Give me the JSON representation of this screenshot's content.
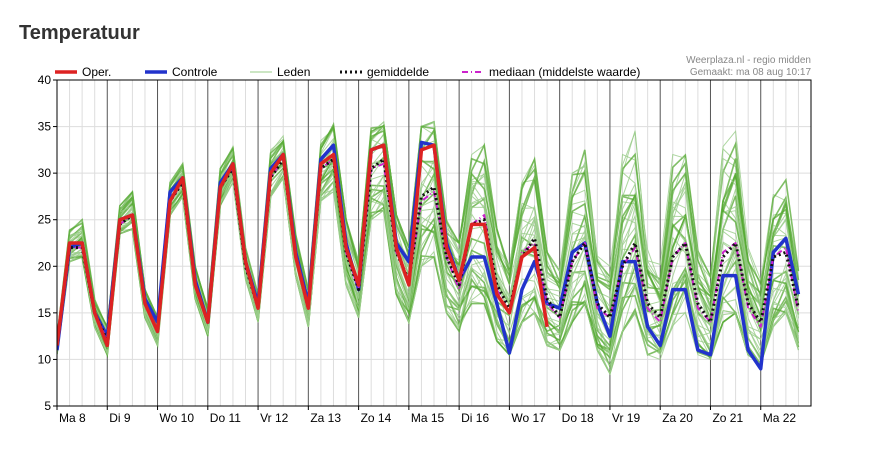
{
  "title": "Temperatuur",
  "source_line1": "Weerplaza.nl - regio midden",
  "source_line2": "Gemaakt: ma 08 aug 10:17",
  "legend": [
    {
      "label": "Oper.",
      "color": "#dd2222",
      "style": "solid"
    },
    {
      "label": "Controle",
      "color": "#2233cc",
      "style": "solid"
    },
    {
      "label": "Leden",
      "color": "#99cc88",
      "style": "thin"
    },
    {
      "label": "gemiddelde",
      "color": "#111111",
      "style": "dotted"
    },
    {
      "label": "mediaan (middelste waarde)",
      "color": "#cc22cc",
      "style": "dashdot"
    }
  ],
  "chart_data": {
    "type": "line",
    "title": "Temperatuur",
    "ylim": [
      5,
      40
    ],
    "yticks": [
      5,
      10,
      15,
      20,
      25,
      30,
      35,
      40
    ],
    "days": [
      "Ma 8",
      "Di 9",
      "Wo 10",
      "Do 11",
      "Vr 12",
      "Za 13",
      "Zo 14",
      "Ma 15",
      "Di 16",
      "Wo 17",
      "Do 18",
      "Vr 19",
      "Za 20",
      "Zo 21",
      "Ma 22"
    ],
    "x_unit": "6-hourly steps from Ma 8 00:00",
    "grid": true,
    "legend_position": "top",
    "series": [
      {
        "name": "Oper.",
        "color": "#dd2222",
        "values": [
          11.5,
          22.5,
          22.5,
          15,
          11.5,
          25,
          25.5,
          16,
          13,
          27,
          29.5,
          18,
          14,
          28.5,
          31,
          20.5,
          15.5,
          30,
          32,
          21,
          15.5,
          31,
          32,
          22,
          18,
          32.5,
          33,
          22,
          18,
          32.5,
          33,
          22,
          18.5,
          24.5,
          24.5,
          17,
          15,
          21,
          22,
          13.5
        ]
      },
      {
        "name": "Controle",
        "color": "#2233cc",
        "values": [
          11,
          22,
          22.5,
          15,
          12.5,
          25,
          25.5,
          16.5,
          14,
          28,
          29.5,
          18.5,
          14,
          29,
          31,
          20.5,
          16,
          30.5,
          32,
          21.5,
          16,
          31.5,
          33,
          22.5,
          17.5,
          32.5,
          33,
          22.5,
          20.5,
          33.3,
          33,
          22.5,
          18.5,
          21,
          21,
          16,
          10.7,
          17.5,
          20.5,
          16,
          15.5,
          21.5,
          22.5,
          16,
          12.5,
          20.5,
          20.5,
          13.5,
          11.5,
          17.5,
          17.5,
          11,
          10.5,
          19,
          19,
          11,
          9,
          21.5,
          23,
          17
        ]
      },
      {
        "name": "gemiddelde",
        "color": "#111111",
        "values": [
          11.5,
          22,
          22,
          15,
          12,
          24.5,
          25.5,
          16,
          13,
          27,
          29,
          18,
          14,
          28.5,
          30.5,
          20,
          15.5,
          29.5,
          31.5,
          21,
          15.5,
          30.5,
          31.5,
          21.5,
          17.5,
          30.5,
          31.5,
          21.5,
          18.5,
          27.5,
          28.5,
          21,
          18,
          24.5,
          25,
          18,
          15.5,
          21,
          23,
          16.5,
          14.5,
          20.5,
          22.5,
          16,
          14.5,
          20,
          22.5,
          16,
          14.5,
          21,
          22.5,
          16,
          14,
          21,
          22.5,
          16,
          14,
          21,
          21.5,
          15.5
        ]
      },
      {
        "name": "mediaan (middelste waarde)",
        "color": "#cc22cc",
        "values": [
          11.5,
          22,
          22,
          15,
          12,
          24.5,
          25.5,
          16,
          13,
          27,
          29,
          18,
          14,
          28.5,
          30.5,
          20,
          15.5,
          29.5,
          31.5,
          21,
          15.5,
          30.5,
          31.5,
          21.5,
          17.5,
          30.5,
          31,
          21.5,
          18.5,
          27,
          28,
          21,
          17.5,
          24.5,
          25.5,
          17.5,
          15,
          21.5,
          22.5,
          16,
          14.5,
          20.5,
          22.5,
          15.5,
          14.5,
          20,
          22,
          15.5,
          14,
          21,
          22.5,
          15.5,
          14,
          21.5,
          22.5,
          15.5,
          13.5,
          21,
          22,
          15
        ]
      },
      {
        "name": "Leden-envelope",
        "color": "#66aa44",
        "note": "ensemble member spread; lower and upper bounds",
        "low": [
          10.5,
          20.5,
          21,
          13.5,
          10.5,
          23.5,
          24,
          14.5,
          11.5,
          25.5,
          27.5,
          16.5,
          12.5,
          26.5,
          29,
          18.5,
          14,
          27.5,
          29.5,
          19,
          13.5,
          27,
          28,
          18,
          14.5,
          25,
          26,
          17,
          14,
          20,
          21,
          15,
          13,
          16,
          16,
          12,
          10.5,
          14,
          15,
          11.5,
          11,
          14,
          16,
          11,
          8.5,
          13,
          15,
          10.5,
          10,
          13.5,
          15,
          10.5,
          10,
          14,
          15,
          10.5,
          9.5,
          13.5,
          15,
          11
        ],
        "high": [
          12.5,
          24,
          25,
          16.5,
          13.5,
          26.5,
          28,
          17.5,
          14.5,
          29,
          31,
          20,
          15.5,
          30.5,
          33,
          22,
          17,
          32.5,
          34,
          23.5,
          17.5,
          33.5,
          35.5,
          25,
          20.5,
          35,
          35.5,
          25.5,
          22,
          35,
          35.5,
          25,
          22.5,
          32,
          33,
          24,
          20,
          29,
          31.5,
          21.5,
          19.5,
          30,
          32.5,
          21.5,
          20,
          33,
          35.5,
          23,
          20.5,
          32,
          33.5,
          22.5,
          19,
          33,
          34.5,
          22,
          18.5,
          28,
          29.5,
          19.5
        ]
      }
    ]
  }
}
